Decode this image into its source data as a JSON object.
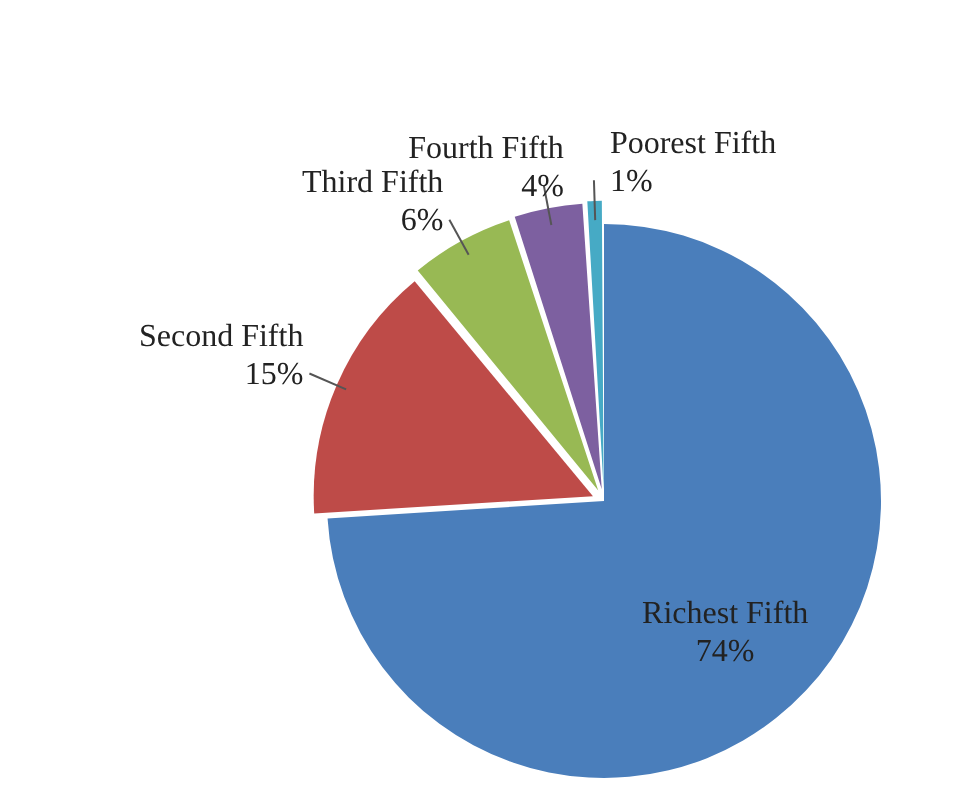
{
  "chart_data": {
    "type": "pie",
    "categories": [
      "Richest Fifth",
      "Second Fifth",
      "Third Fifth",
      "Fourth Fifth",
      "Poorest Fifth"
    ],
    "values": [
      74,
      15,
      6,
      4,
      1
    ],
    "colors": [
      "#4a7ebb",
      "#be4b48",
      "#98b954",
      "#7d60a0",
      "#46aac5"
    ],
    "value_labels": [
      "74%",
      "15%",
      "6%",
      "4%",
      "1%"
    ],
    "legend": false
  }
}
